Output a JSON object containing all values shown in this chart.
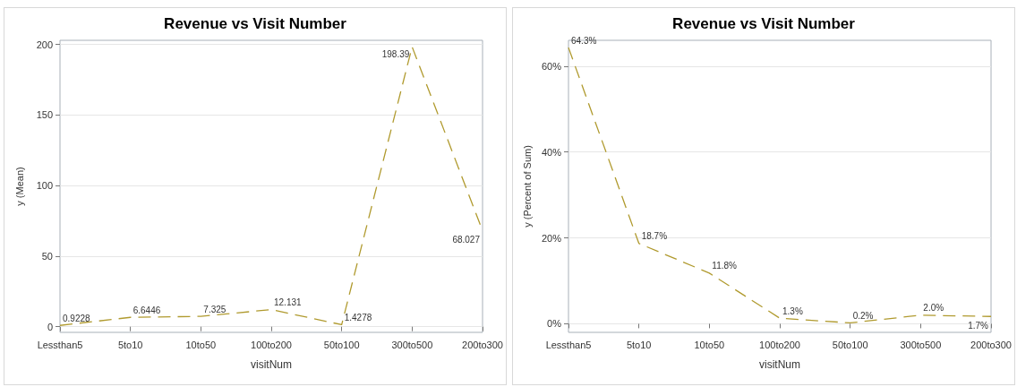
{
  "chart_data": [
    {
      "type": "line",
      "title": "Revenue vs Visit Number",
      "xlabel": "visitNum",
      "ylabel": "y (Mean)",
      "categories": [
        "Lessthan5",
        "5to10",
        "10to50",
        "100to200",
        "50to100",
        "300to500",
        "200to300"
      ],
      "series": [
        {
          "color": "#b09a2e",
          "values": [
            0.9228,
            6.6446,
            7.325,
            12.131,
            1.4278,
            198.39,
            68.027
          ]
        }
      ],
      "ylim": [
        -4,
        203
      ],
      "yticks": [
        0,
        50,
        100,
        150,
        200
      ],
      "grid": "y",
      "marker": "none",
      "line_style": "dashed",
      "data_labels": true
    },
    {
      "type": "line",
      "title": "Revenue vs Visit Number",
      "xlabel": "visitNum",
      "ylabel": "y (Percent of Sum)",
      "categories": [
        "Lessthan5",
        "5to10",
        "10to50",
        "100to200",
        "50to100",
        "300to500",
        "200to300"
      ],
      "series": [
        {
          "color": "#b09a2e",
          "values": [
            64.3,
            18.7,
            11.8,
            1.3,
            0.2,
            2.0,
            1.7
          ],
          "value_labels": [
            "64.3%",
            "18.7%",
            "11.8%",
            "1.3%",
            "0.2%",
            "2.0%",
            "1.7%"
          ]
        }
      ],
      "ylim": [
        -2,
        66
      ],
      "yticks": [
        {
          "value": 0,
          "label": "0%"
        },
        {
          "value": 20,
          "label": "20%"
        },
        {
          "value": 40,
          "label": "40%"
        },
        {
          "value": 60,
          "label": "60%"
        }
      ],
      "grid": "y",
      "marker": "none",
      "line_style": "dashed"
    }
  ]
}
